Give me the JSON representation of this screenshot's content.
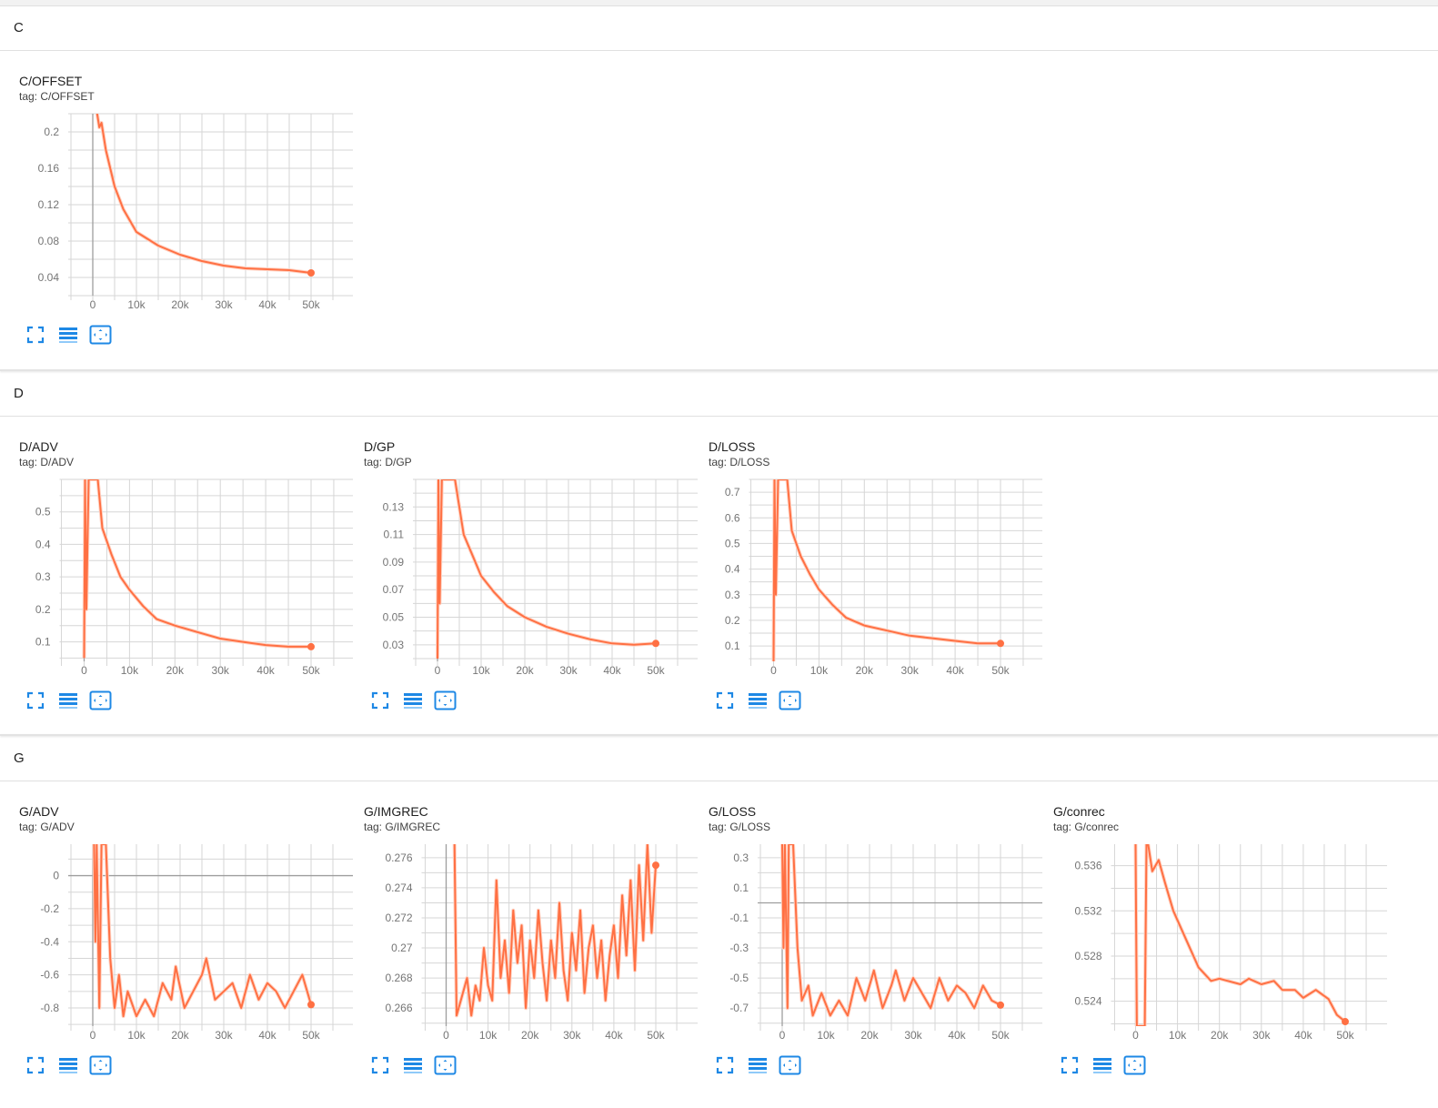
{
  "colors": {
    "line": "#ff7043",
    "line_faint": "#ffd3c4",
    "grid": "#d6d6d6",
    "axis": "#9e9e9e",
    "icon": "#1e88e5"
  },
  "icons": [
    "fullscreen-icon",
    "toggle-log-scale-icon",
    "fit-domain-icon"
  ],
  "sections": [
    {
      "title": "C",
      "cards": [
        {
          "title": "C/OFFSET",
          "tag": "tag: C/OFFSET"
        }
      ]
    },
    {
      "title": "D",
      "cards": [
        {
          "title": "D/ADV",
          "tag": "tag: D/ADV"
        },
        {
          "title": "D/GP",
          "tag": "tag: D/GP"
        },
        {
          "title": "D/LOSS",
          "tag": "tag: D/LOSS"
        }
      ]
    },
    {
      "title": "G",
      "cards": [
        {
          "title": "G/ADV",
          "tag": "tag: G/ADV"
        },
        {
          "title": "G/IMGREC",
          "tag": "tag: G/IMGREC"
        },
        {
          "title": "G/LOSS",
          "tag": "tag: G/LOSS"
        },
        {
          "title": "G/conrec",
          "tag": "tag: G/conrec"
        }
      ]
    }
  ],
  "chart_data": [
    {
      "type": "line",
      "title": "C/OFFSET",
      "xticks": [
        "0",
        "10k",
        "20k",
        "30k",
        "40k",
        "50k"
      ],
      "xtick_values": [
        0,
        10000,
        20000,
        30000,
        40000,
        50000
      ],
      "yticks": [
        "0.04",
        "0.08",
        "0.12",
        "0.16",
        "0.2"
      ],
      "ytick_values": [
        0.04,
        0.08,
        0.12,
        0.16,
        0.2
      ],
      "ylim": [
        0.02,
        0.22
      ],
      "grid": true,
      "x": [
        1000,
        1500,
        2000,
        3000,
        5000,
        7000,
        10000,
        15000,
        20000,
        25000,
        30000,
        35000,
        40000,
        45000,
        50000
      ],
      "y": [
        0.22,
        0.205,
        0.21,
        0.18,
        0.14,
        0.115,
        0.09,
        0.075,
        0.065,
        0.058,
        0.053,
        0.05,
        0.049,
        0.048,
        0.045
      ]
    },
    {
      "type": "line",
      "title": "D/ADV",
      "xticks": [
        "0",
        "10k",
        "20k",
        "30k",
        "40k",
        "50k"
      ],
      "xtick_values": [
        0,
        10000,
        20000,
        30000,
        40000,
        50000
      ],
      "yticks": [
        "0.1",
        "0.2",
        "0.3",
        "0.4",
        "0.5"
      ],
      "ytick_values": [
        0.1,
        0.2,
        0.3,
        0.4,
        0.5
      ],
      "ylim": [
        0.04,
        0.6
      ],
      "grid": true,
      "x": [
        0,
        200,
        500,
        800,
        1000,
        3000,
        4000,
        6000,
        8000,
        10000,
        13000,
        16000,
        20000,
        25000,
        30000,
        35000,
        40000,
        45000,
        50000
      ],
      "y": [
        0.05,
        0.6,
        0.2,
        0.45,
        0.6,
        0.6,
        0.45,
        0.37,
        0.3,
        0.26,
        0.21,
        0.17,
        0.15,
        0.13,
        0.11,
        0.1,
        0.09,
        0.085,
        0.085
      ]
    },
    {
      "type": "line",
      "title": "D/GP",
      "xticks": [
        "0",
        "10k",
        "20k",
        "30k",
        "40k",
        "50k"
      ],
      "xtick_values": [
        0,
        10000,
        20000,
        30000,
        40000,
        50000
      ],
      "yticks": [
        "0.03",
        "0.05",
        "0.07",
        "0.09",
        "0.11",
        "0.13"
      ],
      "ytick_values": [
        0.03,
        0.05,
        0.07,
        0.09,
        0.11,
        0.13
      ],
      "ylim": [
        0.018,
        0.15
      ],
      "grid": true,
      "x": [
        0,
        200,
        500,
        1000,
        4000,
        6000,
        8000,
        10000,
        13000,
        16000,
        20000,
        25000,
        30000,
        35000,
        40000,
        45000,
        50000
      ],
      "y": [
        0.02,
        0.15,
        0.06,
        0.15,
        0.15,
        0.11,
        0.095,
        0.08,
        0.068,
        0.058,
        0.05,
        0.043,
        0.038,
        0.034,
        0.031,
        0.03,
        0.031
      ]
    },
    {
      "type": "line",
      "title": "D/LOSS",
      "xticks": [
        "0",
        "10k",
        "20k",
        "30k",
        "40k",
        "50k"
      ],
      "xtick_values": [
        0,
        10000,
        20000,
        30000,
        40000,
        50000
      ],
      "yticks": [
        "0.1",
        "0.2",
        "0.3",
        "0.4",
        "0.5",
        "0.6",
        "0.7"
      ],
      "ytick_values": [
        0.1,
        0.2,
        0.3,
        0.4,
        0.5,
        0.6,
        0.7
      ],
      "ylim": [
        0.04,
        0.75
      ],
      "grid": true,
      "x": [
        0,
        200,
        500,
        1000,
        3000,
        4000,
        6000,
        8000,
        10000,
        13000,
        16000,
        20000,
        25000,
        30000,
        35000,
        40000,
        45000,
        50000
      ],
      "y": [
        0.04,
        0.75,
        0.3,
        0.75,
        0.75,
        0.55,
        0.45,
        0.38,
        0.32,
        0.26,
        0.21,
        0.18,
        0.16,
        0.14,
        0.13,
        0.12,
        0.11,
        0.11
      ]
    },
    {
      "type": "line",
      "title": "G/ADV",
      "xticks": [
        "0",
        "10k",
        "20k",
        "30k",
        "40k",
        "50k"
      ],
      "xtick_values": [
        0,
        10000,
        20000,
        30000,
        40000,
        50000
      ],
      "yticks": [
        "-0.8",
        "-0.6",
        "-0.4",
        "-0.2",
        "0"
      ],
      "ytick_values": [
        -0.8,
        -0.6,
        -0.4,
        -0.2,
        0
      ],
      "ylim": [
        -0.91,
        0.19
      ],
      "grid": true,
      "x": [
        300,
        600,
        900,
        1500,
        2000,
        3000,
        4000,
        5000,
        6000,
        7000,
        8000,
        10000,
        12000,
        14000,
        16000,
        18000,
        19000,
        21000,
        23000,
        25000,
        26000,
        28000,
        30000,
        32000,
        34000,
        36000,
        38000,
        40000,
        42000,
        44000,
        46000,
        48000,
        50000
      ],
      "y": [
        0.19,
        -0.4,
        0.19,
        -0.8,
        0.19,
        0.19,
        -0.5,
        -0.8,
        -0.6,
        -0.85,
        -0.7,
        -0.85,
        -0.75,
        -0.85,
        -0.65,
        -0.75,
        -0.55,
        -0.8,
        -0.7,
        -0.6,
        -0.5,
        -0.75,
        -0.7,
        -0.65,
        -0.8,
        -0.6,
        -0.75,
        -0.65,
        -0.7,
        -0.8,
        -0.7,
        -0.6,
        -0.78
      ]
    },
    {
      "type": "line",
      "title": "G/IMGREC",
      "xticks": [
        "0",
        "10k",
        "20k",
        "30k",
        "40k",
        "50k"
      ],
      "xtick_values": [
        0,
        10000,
        20000,
        30000,
        40000,
        50000
      ],
      "yticks": [
        "0.266",
        "0.268",
        "0.27",
        "0.272",
        "0.274",
        "0.276"
      ],
      "ytick_values": [
        0.266,
        0.268,
        0.27,
        0.272,
        0.274,
        0.276
      ],
      "ylim": [
        0.2648,
        0.2769
      ],
      "grid": true,
      "x": [
        2000,
        2500,
        3500,
        5000,
        6000,
        7000,
        8000,
        9000,
        10000,
        11000,
        12000,
        13000,
        14000,
        15000,
        16000,
        17000,
        18000,
        19000,
        20000,
        21000,
        22000,
        23000,
        24000,
        25000,
        26000,
        27000,
        28000,
        29000,
        30000,
        31000,
        32000,
        33000,
        34000,
        35000,
        36000,
        37000,
        38000,
        39000,
        40000,
        41000,
        42000,
        43000,
        44000,
        45000,
        46000,
        47000,
        48000,
        49000,
        50000
      ],
      "y": [
        0.2769,
        0.2655,
        0.2665,
        0.268,
        0.2655,
        0.2675,
        0.2665,
        0.27,
        0.2675,
        0.2665,
        0.2745,
        0.268,
        0.2705,
        0.267,
        0.2725,
        0.269,
        0.2715,
        0.266,
        0.2705,
        0.268,
        0.2725,
        0.269,
        0.2665,
        0.2705,
        0.268,
        0.273,
        0.2685,
        0.2665,
        0.271,
        0.2685,
        0.2725,
        0.267,
        0.27,
        0.2715,
        0.268,
        0.2705,
        0.2665,
        0.2695,
        0.2715,
        0.268,
        0.2735,
        0.2695,
        0.2745,
        0.2685,
        0.2755,
        0.2705,
        0.2769,
        0.271,
        0.2755
      ]
    },
    {
      "type": "line",
      "title": "G/LOSS",
      "xticks": [
        "0",
        "10k",
        "20k",
        "30k",
        "40k",
        "50k"
      ],
      "xtick_values": [
        0,
        10000,
        20000,
        30000,
        40000,
        50000
      ],
      "yticks": [
        "-0.7",
        "-0.5",
        "-0.3",
        "-0.1",
        "0.1",
        "0.3"
      ],
      "ytick_values": [
        -0.7,
        -0.5,
        -0.3,
        -0.1,
        0.1,
        0.3
      ],
      "ylim": [
        -0.82,
        0.39
      ],
      "grid": true,
      "x": [
        0,
        300,
        600,
        1200,
        1500,
        2500,
        3500,
        4500,
        6000,
        7000,
        9000,
        11000,
        13000,
        15000,
        17000,
        19000,
        21000,
        23000,
        25000,
        26000,
        28000,
        30000,
        32000,
        34000,
        36000,
        38000,
        40000,
        42000,
        44000,
        46000,
        48000,
        50000
      ],
      "y": [
        0.39,
        -0.3,
        0.39,
        -0.7,
        0.39,
        0.39,
        -0.3,
        -0.65,
        -0.55,
        -0.75,
        -0.6,
        -0.75,
        -0.65,
        -0.75,
        -0.5,
        -0.65,
        -0.45,
        -0.7,
        -0.55,
        -0.45,
        -0.65,
        -0.5,
        -0.6,
        -0.7,
        -0.5,
        -0.65,
        -0.55,
        -0.6,
        -0.7,
        -0.55,
        -0.65,
        -0.68
      ]
    },
    {
      "type": "line",
      "title": "G/conrec",
      "xticks": [
        "0",
        "10k",
        "20k",
        "30k",
        "40k",
        "50k"
      ],
      "xtick_values": [
        0,
        10000,
        20000,
        30000,
        40000,
        50000
      ],
      "yticks": [
        "0.524",
        "0.528",
        "0.532",
        "0.536"
      ],
      "ytick_values": [
        0.524,
        0.528,
        0.532,
        0.536
      ],
      "ylim": [
        0.5218,
        0.5379
      ],
      "grid": true,
      "x": [
        0,
        300,
        2200,
        2600,
        3000,
        4000,
        5500,
        7000,
        9000,
        12000,
        15000,
        18000,
        20000,
        22000,
        25000,
        27000,
        30000,
        33000,
        35000,
        38000,
        40000,
        43000,
        46000,
        48000,
        50000
      ],
      "y": [
        0.5379,
        0.5218,
        0.5218,
        0.5379,
        0.5379,
        0.5355,
        0.5365,
        0.5345,
        0.532,
        0.5295,
        0.527,
        0.5258,
        0.526,
        0.5258,
        0.5255,
        0.526,
        0.5255,
        0.5258,
        0.525,
        0.525,
        0.5243,
        0.525,
        0.5242,
        0.5228,
        0.5222
      ]
    }
  ]
}
